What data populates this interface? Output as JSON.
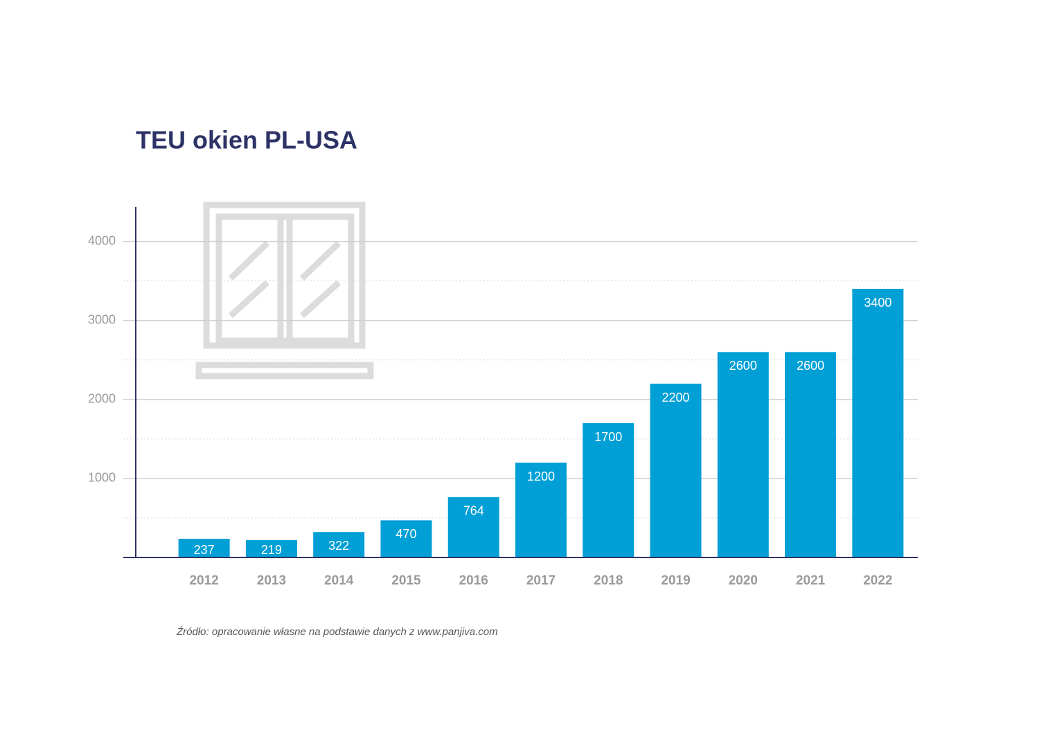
{
  "chart_data": {
    "type": "bar",
    "title": "TEU okien PL-USA",
    "categories": [
      "2012",
      "2013",
      "2014",
      "2015",
      "2016",
      "2017",
      "2018",
      "2019",
      "2020",
      "2021",
      "2022"
    ],
    "values": [
      237,
      219,
      322,
      470,
      764,
      1200,
      1700,
      2200,
      2600,
      2600,
      3400
    ],
    "color": "#009fd6",
    "ylim": [
      0,
      4400
    ],
    "yticks": [
      1000,
      2000,
      3000,
      4000
    ],
    "minor_gridlines": [
      500,
      1500,
      2500,
      3500
    ],
    "grid": true,
    "source": "Źródło: opracowanie własne na podstawie danych z www.panjiva.com"
  }
}
